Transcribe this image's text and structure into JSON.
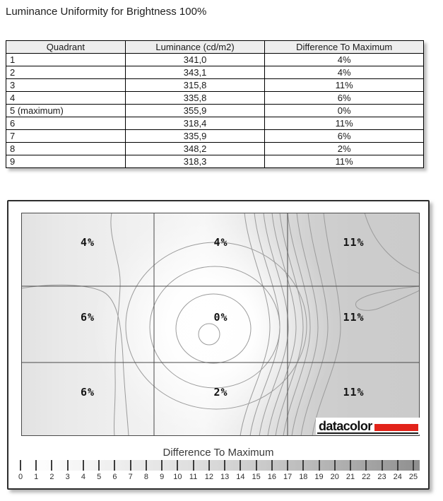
{
  "title": "Luminance Uniformity for Brightness 100%",
  "table": {
    "columns": [
      "Quadrant",
      "Luminance (cd/m2)",
      "Difference To Maximum"
    ],
    "rows": [
      [
        "1",
        "341,0",
        "4%"
      ],
      [
        "2",
        "343,1",
        "4%"
      ],
      [
        "3",
        "315,8",
        "11%"
      ],
      [
        "4",
        "335,8",
        "6%"
      ],
      [
        "5 (maximum)",
        "355,9",
        "0%"
      ],
      [
        "6",
        "318,4",
        "11%"
      ],
      [
        "7",
        "335,9",
        "6%"
      ],
      [
        "8",
        "348,2",
        "2%"
      ],
      [
        "9",
        "318,3",
        "11%"
      ]
    ]
  },
  "chart_data": {
    "type": "heatmap",
    "title": "Difference To Maximum",
    "grid": {
      "rows": 3,
      "cols": 3
    },
    "cell_labels": [
      [
        "4%",
        "4%",
        "11%"
      ],
      [
        "6%",
        "0%",
        "11%"
      ],
      [
        "6%",
        "2%",
        "11%"
      ]
    ],
    "values_percent": [
      [
        4,
        4,
        11
      ],
      [
        6,
        0,
        11
      ],
      [
        6,
        2,
        11
      ]
    ],
    "maximum_cell": "center (quadrant 5)",
    "colorbar": {
      "label": "Difference To Maximum",
      "min": 0,
      "max": 25,
      "tick_labels": [
        "0",
        "1",
        "2",
        "3",
        "4",
        "5",
        "6",
        "7",
        "8",
        "9",
        "10",
        "11",
        "12",
        "13",
        "14",
        "15",
        "16",
        "17",
        "18",
        "19",
        "20",
        "21",
        "22",
        "23",
        "24",
        "25"
      ]
    }
  },
  "logo": {
    "text": "datacolor",
    "accent_color": "#e2231a"
  },
  "colors": {
    "table_header_bg": "#eeeeee",
    "plot_light": "#f8f8f8",
    "plot_dark": "#cbcbcb",
    "colorbar_start": "#ffffff",
    "colorbar_end": "#8f8f8f"
  }
}
